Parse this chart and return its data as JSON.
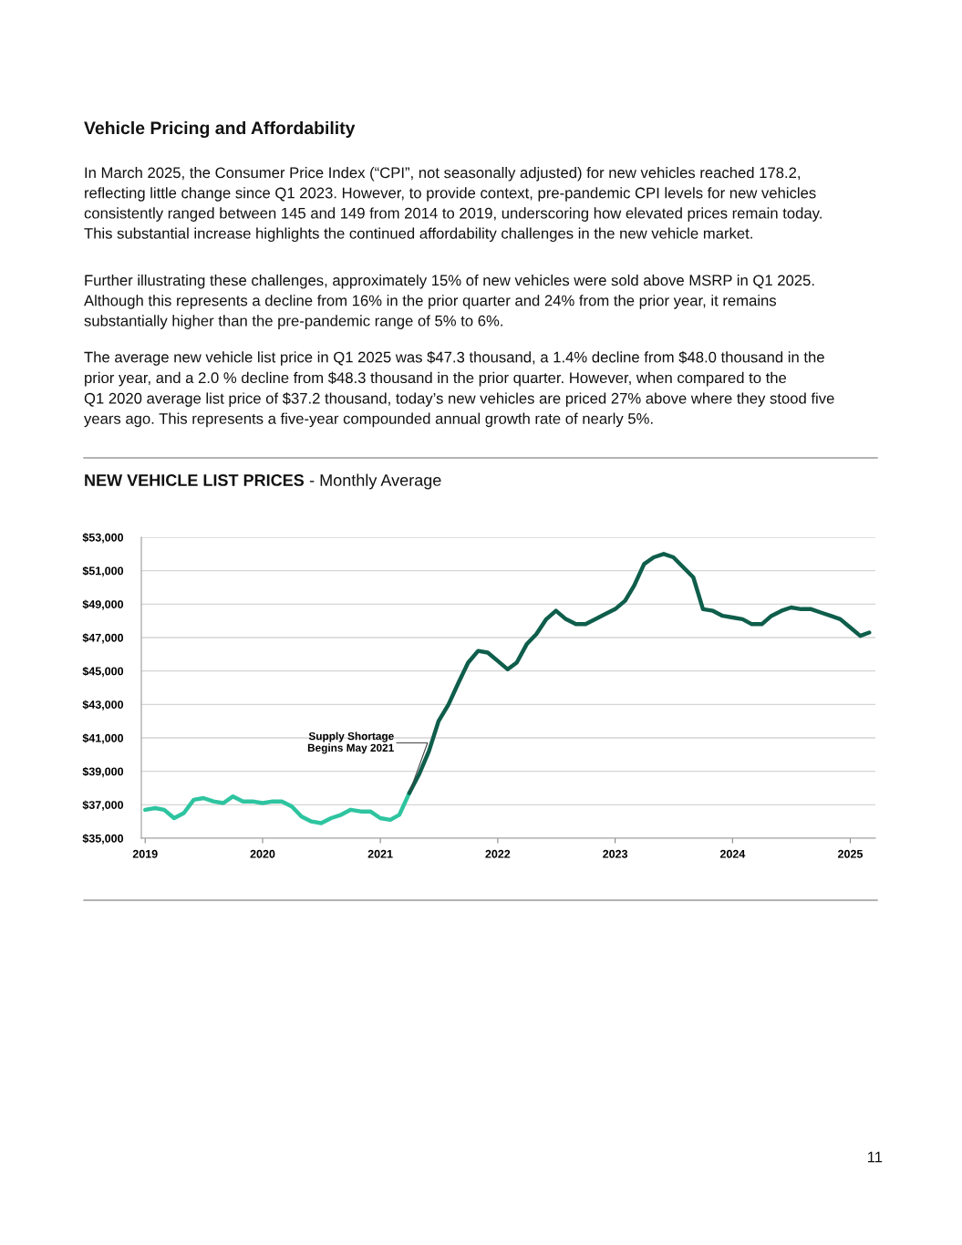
{
  "chart_data": {
    "type": "line",
    "title": "NEW VEHICLE LIST PRICES",
    "subtitle": "- Monthly Average",
    "x": [
      "2019-01",
      "2019-02",
      "2019-03",
      "2019-04",
      "2019-05",
      "2019-06",
      "2019-07",
      "2019-08",
      "2019-09",
      "2019-10",
      "2019-11",
      "2019-12",
      "2020-01",
      "2020-02",
      "2020-03",
      "2020-04",
      "2020-05",
      "2020-06",
      "2020-07",
      "2020-08",
      "2020-09",
      "2020-10",
      "2020-11",
      "2020-12",
      "2021-01",
      "2021-02",
      "2021-03",
      "2021-04",
      "2021-05",
      "2021-06",
      "2021-07",
      "2021-08",
      "2021-09",
      "2021-10",
      "2021-11",
      "2021-12",
      "2022-01",
      "2022-02",
      "2022-03",
      "2022-04",
      "2022-05",
      "2022-06",
      "2022-07",
      "2022-08",
      "2022-09",
      "2022-10",
      "2022-11",
      "2022-12",
      "2023-01",
      "2023-02",
      "2023-03",
      "2023-04",
      "2023-05",
      "2023-06",
      "2023-07",
      "2023-08",
      "2023-09",
      "2023-10",
      "2023-11",
      "2023-12",
      "2024-01",
      "2024-02",
      "2024-03",
      "2024-04",
      "2024-05",
      "2024-06",
      "2024-07",
      "2024-08",
      "2024-09",
      "2024-10",
      "2024-11",
      "2024-12",
      "2025-01",
      "2025-02",
      "2025-03"
    ],
    "series": [
      {
        "color": "#2ec4a0",
        "values": [
          36700,
          36800,
          36700,
          36200,
          36500,
          37300,
          37400,
          37200,
          37100,
          37500,
          37200,
          37200,
          37100,
          37200,
          37200,
          36900,
          36300,
          36000,
          35900,
          36200,
          36400,
          36700,
          36600,
          36600,
          36200,
          36100,
          36400,
          37700,
          null,
          null,
          null,
          null,
          null,
          null,
          null,
          null,
          null,
          null,
          null,
          null,
          null,
          null,
          null,
          null,
          null,
          null,
          null,
          null,
          null,
          null,
          null,
          null,
          null,
          null,
          null,
          null,
          null,
          null,
          null,
          null,
          null,
          null,
          null,
          null,
          null,
          null,
          null,
          null,
          null,
          null,
          null,
          null,
          null,
          null,
          null
        ]
      },
      {
        "color": "#0e5e4b",
        "values": [
          null,
          null,
          null,
          null,
          null,
          null,
          null,
          null,
          null,
          null,
          null,
          null,
          null,
          null,
          null,
          null,
          null,
          null,
          null,
          null,
          null,
          null,
          null,
          null,
          null,
          null,
          null,
          37700,
          38800,
          40200,
          42000,
          43000,
          44300,
          45500,
          46200,
          46100,
          45600,
          45100,
          45500,
          46600,
          47200,
          48100,
          48600,
          48100,
          47800,
          47800,
          48100,
          48400,
          48700,
          49200,
          50100,
          51400,
          51800,
          52000,
          51800,
          51200,
          50600,
          48700,
          48600,
          48300,
          48200,
          48100,
          47800,
          47800,
          48300,
          48600,
          48800,
          48700,
          48700,
          48500,
          48300,
          48100,
          47600,
          47100,
          47300
        ]
      }
    ],
    "xlim": [
      "2018-12-20",
      "2025-03-20"
    ],
    "xticks": [
      {
        "value": "2019-01",
        "label": "2019"
      },
      {
        "value": "2020-01",
        "label": "2020"
      },
      {
        "value": "2021-01",
        "label": "2021"
      },
      {
        "value": "2022-01",
        "label": "2022"
      },
      {
        "value": "2023-01",
        "label": "2023"
      },
      {
        "value": "2024-01",
        "label": "2024"
      },
      {
        "value": "2025-01",
        "label": "2025"
      }
    ],
    "ylim": [
      35000,
      53000
    ],
    "yticks": [
      {
        "value": 35000,
        "label": "$35,000"
      },
      {
        "value": 37000,
        "label": "$37,000"
      },
      {
        "value": 39000,
        "label": "$39,000"
      },
      {
        "value": 41000,
        "label": "$41,000"
      },
      {
        "value": 43000,
        "label": "$43,000"
      },
      {
        "value": 45000,
        "label": "$45,000"
      },
      {
        "value": 47000,
        "label": "$47,000"
      },
      {
        "value": 49000,
        "label": "$49,000"
      },
      {
        "value": 51000,
        "label": "$51,000"
      },
      {
        "value": 53000,
        "label": "$53,000"
      }
    ],
    "grid": "y",
    "marker": "none",
    "line_style": "solid",
    "annotations": [
      {
        "text": "Supply Shortage\nBegins May 2021",
        "x": "2021-04",
        "y": 37700
      },
      "Vehicle Pricing and Affordability",
      "In March 2025, the Consumer Price Index (“CPI”, not seasonally adjusted) for new vehicles reached 178.2,\nreflecting little change since Q1 2023. However, to provide context, pre-pandemic CPI levels for new vehicles\nconsistently ranged between 145 and 149 from 2014 to 2019, underscoring how elevated prices remain today.\nThis substantial increase highlights the continued affordability challenges in the new vehicle market.",
      "Further illustrating these challenges, approximately 15% of new vehicles were sold above MSRP in Q1 2025.\nAlthough this represents a decline from 16% in the prior quarter and 24% from the prior year, it remains\nsubstantially higher than the pre-pandemic range of 5% to 6%.",
      "The average new vehicle list price in Q1 2025 was $47.3 thousand, a 1.4% decline from $48.0 thousand in the\nprior year, and a 2.0 % decline from $48.3 thousand in the prior quarter. However, when compared to the\nQ1 2020 average list price of $37.2 thousand, today’s new vehicles are priced 27% above where they stood five\nyears ago. This represents a five-year compounded annual growth rate of nearly 5%.",
      "11"
    ]
  }
}
